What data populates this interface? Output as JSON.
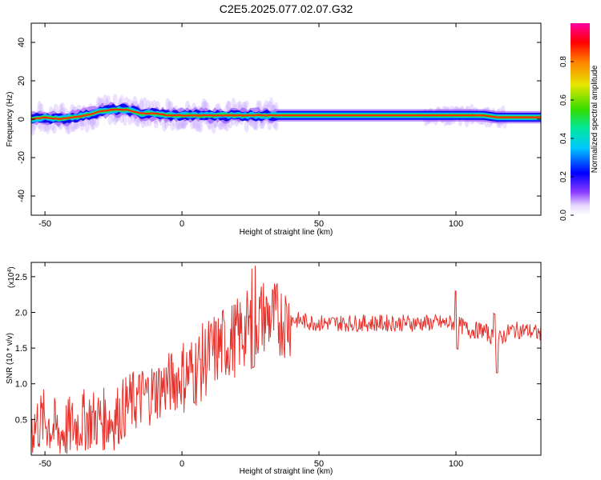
{
  "title": "C2E5.2025.077.02.07.G32",
  "colors": {
    "snr_line": "#e8302a",
    "axis": "#000000",
    "background": "#ffffff"
  },
  "chart_data": [
    {
      "type": "heatmap",
      "xlabel": "Height of straight line (km)",
      "ylabel": "Frequency (Hz)",
      "xlim": [
        -55,
        131
      ],
      "ylim": [
        -50,
        50
      ],
      "xticks": [
        -50,
        0,
        50,
        100
      ],
      "yticks": [
        -40,
        -20,
        0,
        20,
        40
      ],
      "ridge": {
        "x": [
          -55,
          -50,
          -45,
          -40,
          -35,
          -30,
          -25,
          -20,
          -15,
          -10,
          -5,
          0,
          5,
          10,
          20,
          30,
          40,
          60,
          80,
          100,
          110,
          115,
          120,
          131
        ],
        "y": [
          0,
          1,
          0,
          1,
          2,
          4,
          5,
          5,
          3,
          3,
          2,
          2,
          2,
          2,
          2,
          2,
          2,
          2,
          2,
          2,
          2,
          1,
          1,
          1
        ]
      },
      "colorbar": {
        "label": "Normalized spectral amplitude",
        "range": [
          0.0,
          1.0
        ],
        "ticks": [
          "0.0",
          "0.2",
          "0.4",
          "0.6",
          "0.8"
        ],
        "tick_values": [
          0.0,
          0.2,
          0.4,
          0.6,
          0.8
        ]
      }
    },
    {
      "type": "line",
      "xlabel": "Height of straight line (km)",
      "ylabel": "SNR (10 * v/v)",
      "scale_label": "(x10",
      "scale_exp": "4",
      "scale_close": ")",
      "xlim": [
        -55,
        131
      ],
      "ylim": [
        0.0,
        2.7
      ],
      "xticks": [
        -50,
        0,
        50,
        100
      ],
      "yticks": [
        "0.5",
        "1.0",
        "1.5",
        "2.0",
        "2.5"
      ],
      "ytick_values": [
        0.5,
        1.0,
        1.5,
        2.0,
        2.5
      ],
      "series": [
        {
          "x": [
            -55,
            -50,
            -45,
            -40,
            -35,
            -30,
            -25,
            -20,
            -15,
            -10,
            -5,
            0,
            5,
            10,
            15,
            20,
            25,
            30,
            35,
            40,
            50,
            60,
            70,
            80,
            90,
            100,
            105,
            110,
            115,
            120,
            125,
            131
          ],
          "y": [
            0.4,
            0.5,
            0.3,
            0.4,
            0.5,
            0.5,
            0.5,
            0.7,
            0.8,
            0.9,
            1.0,
            1.1,
            1.2,
            1.4,
            1.55,
            1.65,
            1.8,
            1.95,
            1.9,
            1.9,
            1.85,
            1.85,
            1.85,
            1.85,
            1.85,
            1.85,
            1.75,
            1.75,
            1.6,
            1.75,
            1.75,
            1.7
          ]
        }
      ]
    }
  ]
}
